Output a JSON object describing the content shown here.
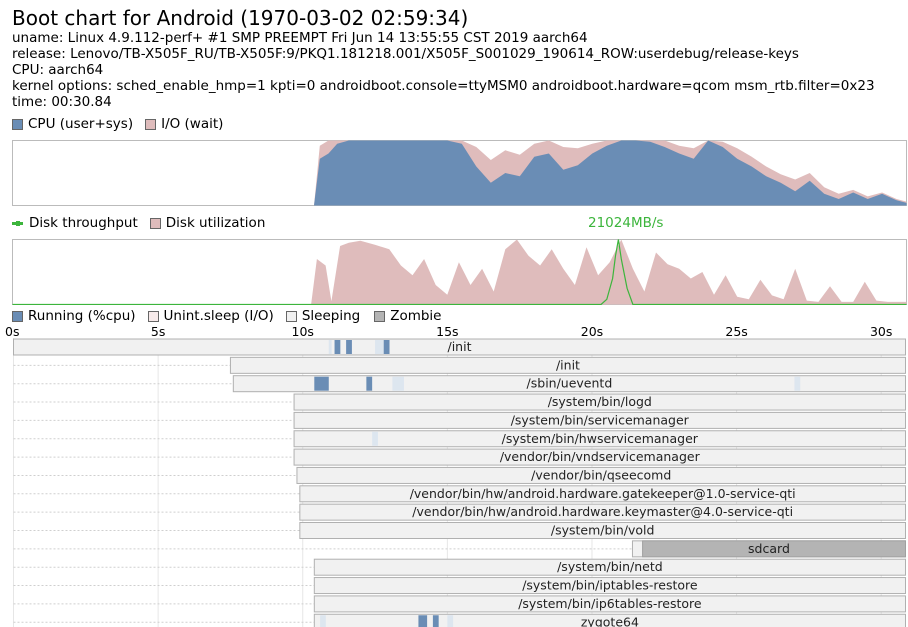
{
  "header": {
    "title": "Boot chart for Android (1970-03-02 02:59:34)",
    "uname": "uname: Linux 4.9.112-perf+ #1 SMP PREEMPT Fri Jun 14 13:55:55 CST 2019 aarch64",
    "release": "release: Lenovo/TB-X505F_RU/TB-X505F:9/PKQ1.181218.001/X505F_S001029_190614_ROW:userdebug/release-keys",
    "cpu": "CPU: aarch64",
    "kernel": "kernel options: sched_enable_hmp=1 kpti=0 androidboot.console=ttyMSM0 androidboot.hardware=qcom msm_rtb.filter=0x23",
    "time": "time: 00:30.84"
  },
  "legends": {
    "cpu_user_sys": "CPU (user+sys)",
    "io_wait": "I/O (wait)",
    "disk_throughput": "Disk throughput",
    "disk_utilization": "Disk utilization",
    "running": "Running (%cpu)",
    "unint_sleep": "Unint.sleep (I/O)",
    "sleeping": "Sleeping",
    "zombie": "Zombie"
  },
  "colors": {
    "cpu": "#6a8db5",
    "io_wait": "#dfbcbc",
    "disk_util": "#dfbcbc",
    "throughput": "#3cb53c",
    "sleeping": "#f1f1f1",
    "running": "#6a8db5",
    "unint_sleep": "#e4d4d4",
    "zombie": "#b4b4b4",
    "peak_label": "#3cb53c"
  },
  "chart_data": [
    {
      "type": "area",
      "name": "cpu-utilization",
      "xlim": [
        0,
        30.84
      ],
      "ylim": [
        0,
        100
      ],
      "x": [
        0,
        10.4,
        10.6,
        10.9,
        11.2,
        11.6,
        12.0,
        12.5,
        13.0,
        13.5,
        14.0,
        14.5,
        15.0,
        15.5,
        16.0,
        16.5,
        17.0,
        17.5,
        18.0,
        18.5,
        19.0,
        19.5,
        20.0,
        20.5,
        21.0,
        21.5,
        22.0,
        22.5,
        23.0,
        23.5,
        24.0,
        24.5,
        25.0,
        25.5,
        26.0,
        26.5,
        27.0,
        27.5,
        28.0,
        28.5,
        29.0,
        29.5,
        30.0,
        30.5,
        30.84
      ],
      "series": [
        {
          "name": "CPU (user+sys)",
          "values": [
            0,
            0,
            72,
            80,
            95,
            100,
            100,
            100,
            100,
            100,
            100,
            100,
            100,
            95,
            60,
            35,
            50,
            45,
            75,
            80,
            55,
            62,
            80,
            92,
            100,
            100,
            98,
            90,
            80,
            72,
            100,
            90,
            72,
            60,
            45,
            35,
            22,
            38,
            18,
            10,
            20,
            10,
            18,
            8,
            4
          ]
        },
        {
          "name": "I/O (wait)",
          "values": [
            0,
            0,
            92,
            100,
            100,
            100,
            100,
            100,
            100,
            100,
            100,
            100,
            100,
            100,
            90,
            70,
            85,
            78,
            95,
            100,
            90,
            88,
            95,
            100,
            100,
            100,
            100,
            100,
            92,
            88,
            100,
            98,
            88,
            75,
            60,
            48,
            40,
            50,
            28,
            18,
            24,
            14,
            20,
            10,
            6
          ]
        }
      ]
    },
    {
      "type": "area",
      "name": "disk-utilization",
      "xlim": [
        0,
        30.84
      ],
      "ylim": [
        0,
        100
      ],
      "peak_label": "21024MB/s",
      "x": [
        0,
        10.3,
        10.5,
        10.8,
        11.0,
        11.3,
        11.6,
        12.0,
        12.5,
        13.0,
        13.4,
        13.8,
        14.2,
        14.6,
        15.0,
        15.4,
        15.8,
        16.2,
        16.6,
        17.0,
        17.4,
        17.8,
        18.2,
        18.6,
        19.0,
        19.4,
        19.8,
        20.2,
        20.6,
        21.0,
        21.4,
        21.8,
        22.2,
        22.6,
        23.0,
        23.4,
        23.8,
        24.2,
        24.6,
        25.0,
        25.4,
        25.8,
        26.2,
        26.6,
        27.0,
        27.4,
        27.8,
        28.2,
        28.6,
        29.0,
        29.4,
        29.8,
        30.2,
        30.84
      ],
      "series": [
        {
          "name": "Disk utilization",
          "values": [
            0,
            0,
            70,
            60,
            5,
            90,
            95,
            98,
            92,
            85,
            60,
            45,
            70,
            30,
            15,
            65,
            30,
            55,
            20,
            85,
            100,
            75,
            60,
            85,
            55,
            30,
            88,
            45,
            65,
            100,
            55,
            20,
            80,
            62,
            55,
            40,
            50,
            15,
            45,
            12,
            8,
            38,
            14,
            8,
            55,
            6,
            4,
            28,
            4,
            4,
            35,
            6,
            4,
            4
          ]
        },
        {
          "name": "Disk throughput",
          "x": [
            0,
            20.3,
            20.5,
            20.7,
            20.8,
            20.9,
            21.0,
            21.2,
            21.4,
            30.84
          ],
          "values": [
            0,
            0,
            8,
            40,
            75,
            100,
            70,
            25,
            0,
            0
          ]
        }
      ]
    }
  ],
  "timeline": {
    "max_seconds": 30.84,
    "ticks": [
      {
        "t": 0,
        "label": "0s"
      },
      {
        "t": 5,
        "label": "5s"
      },
      {
        "t": 10,
        "label": "10s"
      },
      {
        "t": 15,
        "label": "15s"
      },
      {
        "t": 20,
        "label": "20s"
      },
      {
        "t": 25,
        "label": "25s"
      },
      {
        "t": 30,
        "label": "30s"
      }
    ]
  },
  "processes": [
    {
      "name": "/init",
      "start": 0,
      "end": 30.84,
      "running": [
        [
          11.1,
          11.3
        ],
        [
          11.5,
          11.7
        ],
        [
          12.8,
          13.0
        ]
      ],
      "unint": [
        [
          10.9,
          11.0
        ],
        [
          12.5,
          12.8
        ]
      ]
    },
    {
      "name": "/init",
      "start": 7.5,
      "end": 30.84,
      "running": [],
      "unint": []
    },
    {
      "name": "/sbin/ueventd",
      "start": 7.6,
      "end": 30.84,
      "running": [
        [
          10.4,
          10.9
        ],
        [
          12.2,
          12.4
        ]
      ],
      "unint": [
        [
          13.1,
          13.5
        ],
        [
          27.0,
          27.2
        ]
      ]
    },
    {
      "name": "/system/bin/logd",
      "start": 9.7,
      "end": 30.84,
      "running": [],
      "unint": []
    },
    {
      "name": "/system/bin/servicemanager",
      "start": 9.7,
      "end": 30.84,
      "running": [],
      "unint": []
    },
    {
      "name": "/system/bin/hwservicemanager",
      "start": 9.7,
      "end": 30.84,
      "running": [],
      "unint": [
        [
          12.4,
          12.6
        ]
      ]
    },
    {
      "name": "/vendor/bin/vndservicemanager",
      "start": 9.7,
      "end": 30.84,
      "running": [],
      "unint": []
    },
    {
      "name": "/vendor/bin/qseecomd",
      "start": 9.8,
      "end": 30.84,
      "running": [],
      "unint": []
    },
    {
      "name": "/vendor/bin/hw/android.hardware.gatekeeper@1.0-service-qti",
      "start": 9.9,
      "end": 30.84,
      "running": [],
      "unint": []
    },
    {
      "name": "/vendor/bin/hw/android.hardware.keymaster@4.0-service-qti",
      "start": 9.9,
      "end": 30.84,
      "running": [],
      "unint": []
    },
    {
      "name": "/system/bin/vold",
      "start": 9.9,
      "end": 30.84,
      "running": [],
      "unint": []
    },
    {
      "name": "sdcard",
      "start": 21.4,
      "end": 30.84,
      "zombie": [
        [
          21.75,
          30.84
        ]
      ],
      "running": [],
      "unint": []
    },
    {
      "name": "/system/bin/netd",
      "start": 10.4,
      "end": 30.84,
      "running": [],
      "unint": []
    },
    {
      "name": "/system/bin/iptables-restore",
      "start": 10.4,
      "end": 30.84,
      "running": [],
      "unint": []
    },
    {
      "name": "/system/bin/ip6tables-restore",
      "start": 10.4,
      "end": 30.84,
      "running": [],
      "unint": []
    },
    {
      "name": "zygote64",
      "start": 10.4,
      "end": 30.84,
      "running": [
        [
          14.0,
          14.3
        ],
        [
          14.5,
          14.7
        ]
      ],
      "unint": [
        [
          10.6,
          10.8
        ],
        [
          15.0,
          15.2
        ]
      ]
    }
  ]
}
